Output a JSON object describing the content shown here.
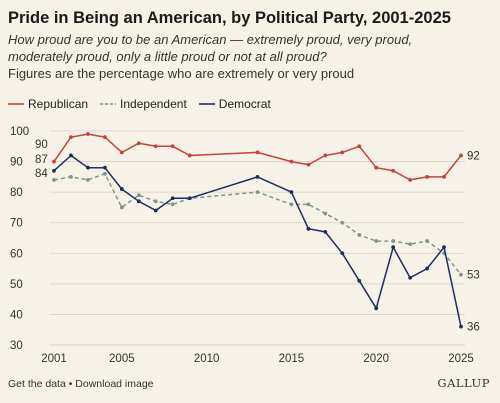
{
  "title": "Pride in Being an American, by Political Party, 2001-2025",
  "subtitle": "How proud are you to be an American — extremely proud, very proud, moderately proud, only a little proud or not at all proud?",
  "note": "Figures are the percentage who are extremely or very proud",
  "footer": "Get the data • Download image",
  "brand": "GALLUP",
  "colors": {
    "republican": "#c8423c",
    "independent": "#7f9690",
    "democrat": "#1d2f5e",
    "grid": "#d6d1c6",
    "text": "#333333"
  },
  "chart_data": {
    "type": "line",
    "title": "Pride in Being an American, by Political Party, 2001-2025",
    "xlabel": "",
    "ylabel": "",
    "xlim": [
      2001,
      2025
    ],
    "ylim": [
      30,
      100
    ],
    "y_ticks": [
      30,
      40,
      50,
      60,
      70,
      80,
      90,
      100
    ],
    "x_ticks": [
      2001,
      2005,
      2010,
      2015,
      2020,
      2025
    ],
    "grid": true,
    "legend": "top-left",
    "series": [
      {
        "name": "Republican",
        "key": "republican",
        "dash": "solid",
        "x": [
          2001,
          2002,
          2003,
          2004,
          2005,
          2006,
          2007,
          2008,
          2009,
          2013,
          2015,
          2016,
          2017,
          2018,
          2019,
          2020,
          2021,
          2022,
          2023,
          2024,
          2025
        ],
        "y": [
          90,
          98,
          99,
          98,
          93,
          96,
          95,
          95,
          92,
          93,
          90,
          89,
          92,
          93,
          95,
          88,
          87,
          84,
          85,
          85,
          92
        ],
        "start_label": "90",
        "end_label": "92"
      },
      {
        "name": "Independent",
        "key": "independent",
        "dash": "dashed",
        "x": [
          2001,
          2002,
          2003,
          2004,
          2005,
          2006,
          2007,
          2008,
          2009,
          2013,
          2015,
          2016,
          2017,
          2018,
          2019,
          2020,
          2021,
          2022,
          2023,
          2024,
          2025
        ],
        "y": [
          84,
          85,
          84,
          86,
          75,
          79,
          77,
          76,
          78,
          80,
          76,
          76,
          73,
          70,
          66,
          64,
          64,
          63,
          64,
          60,
          53
        ],
        "start_label": "84",
        "end_label": "53"
      },
      {
        "name": "Democrat",
        "key": "democrat",
        "dash": "solid",
        "x": [
          2001,
          2002,
          2003,
          2004,
          2005,
          2006,
          2007,
          2008,
          2009,
          2013,
          2015,
          2016,
          2017,
          2018,
          2019,
          2020,
          2021,
          2022,
          2023,
          2024,
          2025
        ],
        "y": [
          87,
          92,
          88,
          88,
          81,
          77,
          74,
          78,
          78,
          85,
          80,
          68,
          67,
          60,
          51,
          42,
          62,
          52,
          55,
          62,
          36
        ],
        "start_label": "87",
        "end_label": "36"
      }
    ]
  }
}
